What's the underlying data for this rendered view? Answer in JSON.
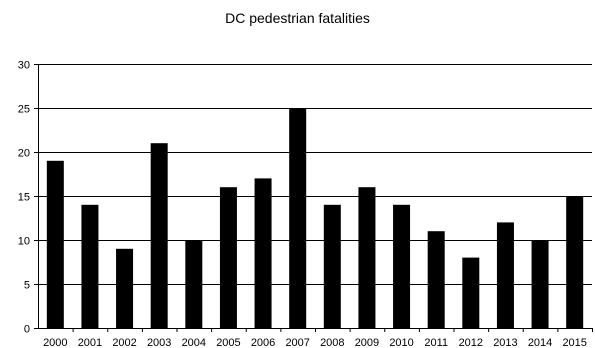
{
  "chart_data": {
    "type": "bar",
    "title": "DC pedestrian fatalities",
    "xlabel": "",
    "ylabel": "",
    "categories": [
      "2000",
      "2001",
      "2002",
      "2003",
      "2004",
      "2005",
      "2006",
      "2007",
      "2008",
      "2009",
      "2010",
      "2011",
      "2012",
      "2013",
      "2014",
      "2015"
    ],
    "values": [
      19,
      14,
      9,
      21,
      10,
      16,
      17,
      25,
      14,
      16,
      14,
      11,
      8,
      12,
      10,
      15
    ],
    "ylim": [
      0,
      30
    ],
    "yticks": [
      0,
      5,
      10,
      15,
      20,
      25,
      30
    ],
    "grid": true,
    "bar_color": "#000000",
    "gridline_color": "#000000"
  }
}
